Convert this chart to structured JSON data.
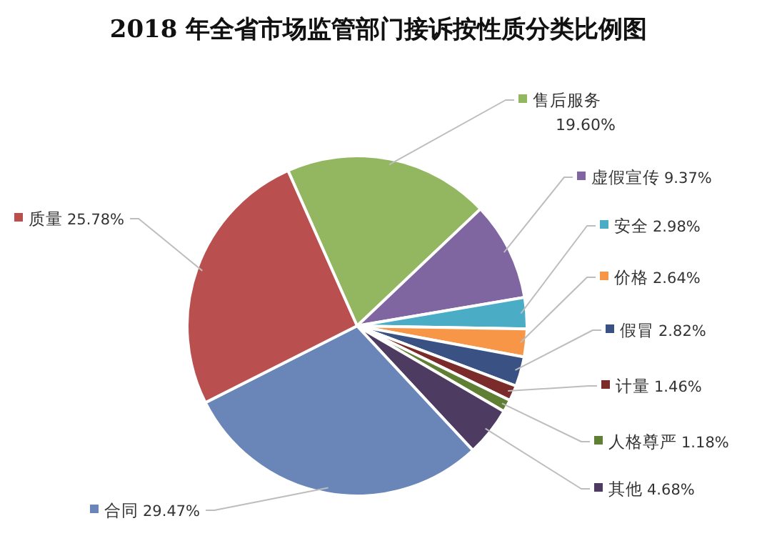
{
  "chart_data": {
    "type": "pie",
    "title": "2018 年全省市场监管部门接诉按性质分类比例图",
    "categories": [
      "售后服务",
      "虚假宣传",
      "安全",
      "价格",
      "假冒",
      "计量",
      "人格尊严",
      "其他",
      "合同",
      "质量"
    ],
    "values": [
      19.6,
      9.37,
      2.98,
      2.64,
      2.82,
      1.46,
      1.18,
      4.68,
      29.47,
      25.78
    ],
    "value_labels": [
      "19.60%",
      "9.37%",
      "2.98%",
      "2.64%",
      "2.82%",
      "1.46%",
      "1.18%",
      "4.68%",
      "29.47%",
      "25.78%"
    ],
    "colors": [
      "#93b760",
      "#8066a0",
      "#4bacc6",
      "#f79646",
      "#3a5283",
      "#7a2b2a",
      "#5f7f35",
      "#4d3b62",
      "#6a85b8",
      "#b9504f"
    ],
    "legend": "right"
  }
}
